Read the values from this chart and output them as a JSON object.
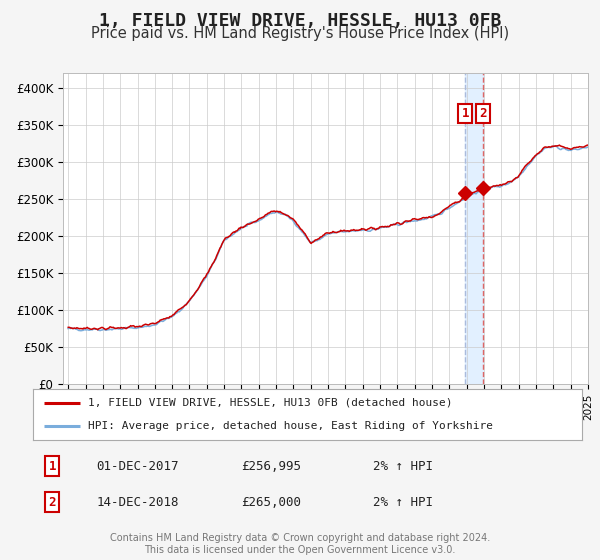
{
  "title": "1, FIELD VIEW DRIVE, HESSLE, HU13 0FB",
  "subtitle": "Price paid vs. HM Land Registry's House Price Index (HPI)",
  "title_fontsize": 13,
  "subtitle_fontsize": 10.5,
  "year_start": 1995,
  "year_end": 2025,
  "ylim": [
    0,
    420000
  ],
  "yticks": [
    0,
    50000,
    100000,
    150000,
    200000,
    250000,
    300000,
    350000,
    400000
  ],
  "ytick_labels": [
    "£0",
    "£50K",
    "£100K",
    "£150K",
    "£200K",
    "£250K",
    "£300K",
    "£350K",
    "£400K"
  ],
  "hpi_color": "#7aaddc",
  "price_color": "#cc0000",
  "marker_color": "#cc0000",
  "vline1_color": "#aabbdd",
  "vline2_color": "#dd6666",
  "vspan_color": "#ddeeff",
  "point1_year": 2017.917,
  "point1_value": 256995,
  "point2_year": 2018.958,
  "point2_value": 265000,
  "legend1_label": "1, FIELD VIEW DRIVE, HESSLE, HU13 0FB (detached house)",
  "legend2_label": "HPI: Average price, detached house, East Riding of Yorkshire",
  "table_row1": [
    "1",
    "01-DEC-2017",
    "£256,995",
    "2% ↑ HPI"
  ],
  "table_row2": [
    "2",
    "14-DEC-2018",
    "£265,000",
    "2% ↑ HPI"
  ],
  "footer1": "Contains HM Land Registry data © Crown copyright and database right 2024.",
  "footer2": "This data is licensed under the Open Government Licence v3.0.",
  "background_color": "#f5f5f5",
  "plot_bg_color": "#ffffff",
  "grid_color": "#cccccc",
  "anchors_x": [
    1995.0,
    1995.5,
    1996.0,
    1996.5,
    1997.0,
    1997.5,
    1998.0,
    1998.5,
    1999.0,
    1999.5,
    2000.0,
    2000.5,
    2001.0,
    2001.5,
    2002.0,
    2002.5,
    2003.0,
    2003.5,
    2004.0,
    2004.5,
    2005.0,
    2005.5,
    2006.0,
    2006.5,
    2007.0,
    2007.5,
    2008.0,
    2008.5,
    2009.0,
    2009.5,
    2010.0,
    2010.5,
    2011.0,
    2011.5,
    2012.0,
    2012.5,
    2013.0,
    2013.5,
    2014.0,
    2014.5,
    2015.0,
    2015.5,
    2016.0,
    2016.5,
    2017.0,
    2017.5,
    2018.0,
    2018.5,
    2019.0,
    2019.5,
    2020.0,
    2020.5,
    2021.0,
    2021.5,
    2022.0,
    2022.5,
    2023.0,
    2023.5,
    2024.0,
    2024.5,
    2025.0
  ],
  "anchors_y": [
    74000,
    73500,
    73000,
    73500,
    73000,
    73500,
    74000,
    75000,
    75500,
    77000,
    80000,
    85000,
    90000,
    100000,
    112000,
    128000,
    145000,
    168000,
    193000,
    202000,
    210000,
    215000,
    220000,
    228000,
    232000,
    228000,
    220000,
    205000,
    190000,
    195000,
    202000,
    204000,
    205000,
    206000,
    208000,
    207000,
    210000,
    212000,
    215000,
    218000,
    220000,
    222000,
    225000,
    230000,
    238000,
    245000,
    252000,
    258000,
    263000,
    265000,
    267000,
    272000,
    280000,
    295000,
    308000,
    318000,
    320000,
    318000,
    315000,
    317000,
    320000
  ]
}
